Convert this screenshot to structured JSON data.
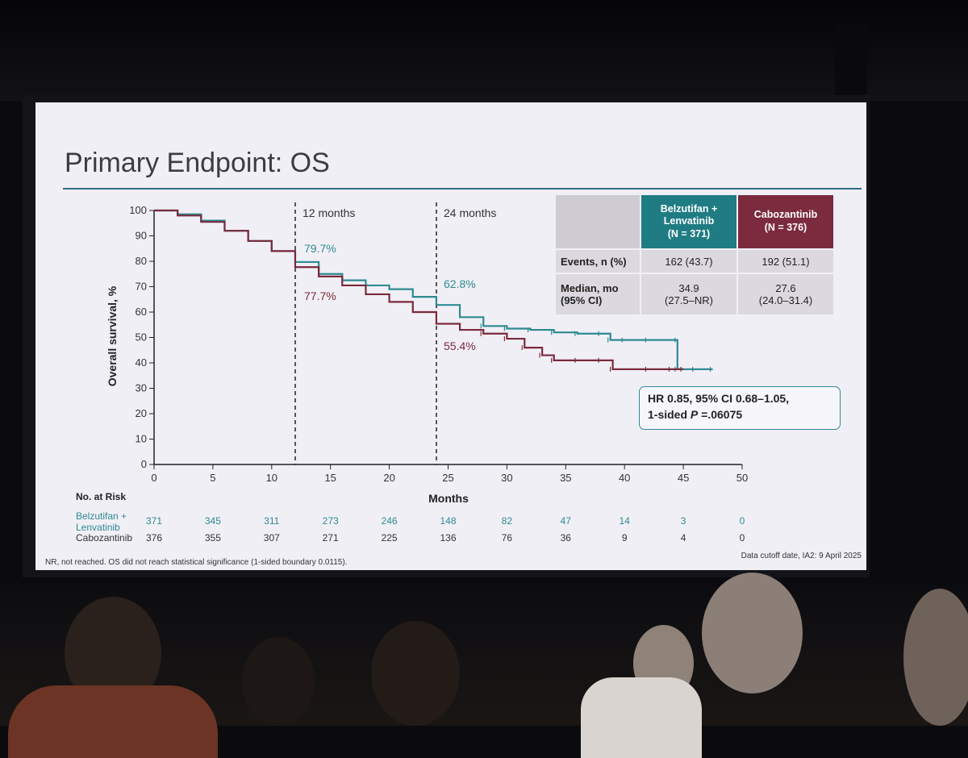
{
  "slide": {
    "title": "Primary Endpoint: OS",
    "landmarks": {
      "m12": "12 months",
      "m24": "24 months"
    },
    "footnote": "NR, not reached. OS did not reach statistical significance (1-sided boundary 0.0115).",
    "cutoff": "Data cutoff date, IA2: 9 April 2025",
    "colors": {
      "belz": "#2e8a92",
      "cabo": "#7a2a3c",
      "rule": "#2f6f80"
    }
  },
  "table": {
    "col1_line1": "Belzutifan +",
    "col1_line2": "Lenvatinib",
    "col1_line3": "(N = 371)",
    "col2_line1": "Cabozantinib",
    "col2_line2": "(N = 376)",
    "events_label": "Events, n (%)",
    "events_belz": "162 (43.7)",
    "events_cabo": "192 (51.1)",
    "median_label_1": "Median, mo",
    "median_label_2": "(95% CI)",
    "median_belz": "34.9",
    "median_belz_ci": "(27.5–NR)",
    "median_cabo": "27.6",
    "median_cabo_ci": "(24.0–31.4)"
  },
  "hr": {
    "line1": "HR 0.85, 95% CI 0.68–1.05,",
    "line2_prefix": "1-sided ",
    "line2_p": "P",
    "line2_suffix": " =.06075"
  },
  "chart_data": {
    "type": "line",
    "title": "Primary Endpoint: OS",
    "xlabel": "Months",
    "ylabel": "Overall survival, %",
    "xlim": [
      0,
      50
    ],
    "ylim": [
      0,
      100
    ],
    "x_ticks": [
      "0",
      "5",
      "10",
      "15",
      "20",
      "25",
      "30",
      "35",
      "40",
      "45",
      "50"
    ],
    "y_ticks": [
      "0",
      "10",
      "20",
      "30",
      "40",
      "50",
      "60",
      "70",
      "80",
      "90",
      "100"
    ],
    "series": [
      {
        "name": "Belzutifan + Lenvatinib",
        "x": [
          0,
          2,
          4,
          6,
          8,
          10,
          12,
          14,
          16,
          18,
          20,
          22,
          24,
          26,
          28,
          30,
          32,
          34,
          36,
          38,
          38.8,
          40,
          42,
          44.5,
          44.5,
          46,
          47.5
        ],
        "y": [
          100,
          98.5,
          96,
          92,
          88,
          84,
          79.7,
          75,
          72.5,
          70.5,
          69,
          66,
          62.8,
          58,
          54.5,
          53.5,
          53,
          52,
          51.5,
          51.5,
          49,
          49,
          49,
          49,
          37.5,
          37.5,
          37.5
        ]
      },
      {
        "name": "Cabozantinib",
        "x": [
          0,
          2,
          4,
          6,
          8,
          10,
          12,
          14,
          16,
          18,
          20,
          22,
          24,
          26,
          28,
          30,
          31.5,
          33,
          34,
          36,
          38,
          39,
          42,
          44,
          45
        ],
        "y": [
          100,
          98,
          95.5,
          92,
          88,
          84,
          77.7,
          74,
          70.5,
          67,
          64,
          60,
          55.4,
          53,
          51.5,
          49.5,
          46,
          43,
          41,
          41,
          41,
          37.5,
          37.5,
          37.5,
          37.5
        ]
      }
    ],
    "annotations": [
      {
        "x": 12,
        "series": "Belzutifan + Lenvatinib",
        "label": "79.7%"
      },
      {
        "x": 12,
        "series": "Cabozantinib",
        "label": "77.7%"
      },
      {
        "x": 24,
        "series": "Belzutifan + Lenvatinib",
        "label": "62.8%"
      },
      {
        "x": 24,
        "series": "Cabozantinib",
        "label": "55.4%"
      }
    ],
    "risk_table": {
      "title": "No. at Risk",
      "belz_label_1": "Belzutifan +",
      "belz_label_2": "Lenvatinib",
      "cabo_label": "Cabozantinib",
      "belz": [
        "371",
        "345",
        "311",
        "273",
        "246",
        "148",
        "82",
        "47",
        "14",
        "3",
        "0"
      ],
      "cabo": [
        "376",
        "355",
        "307",
        "271",
        "225",
        "136",
        "76",
        "36",
        "9",
        "4",
        "0"
      ]
    },
    "grid": false
  }
}
